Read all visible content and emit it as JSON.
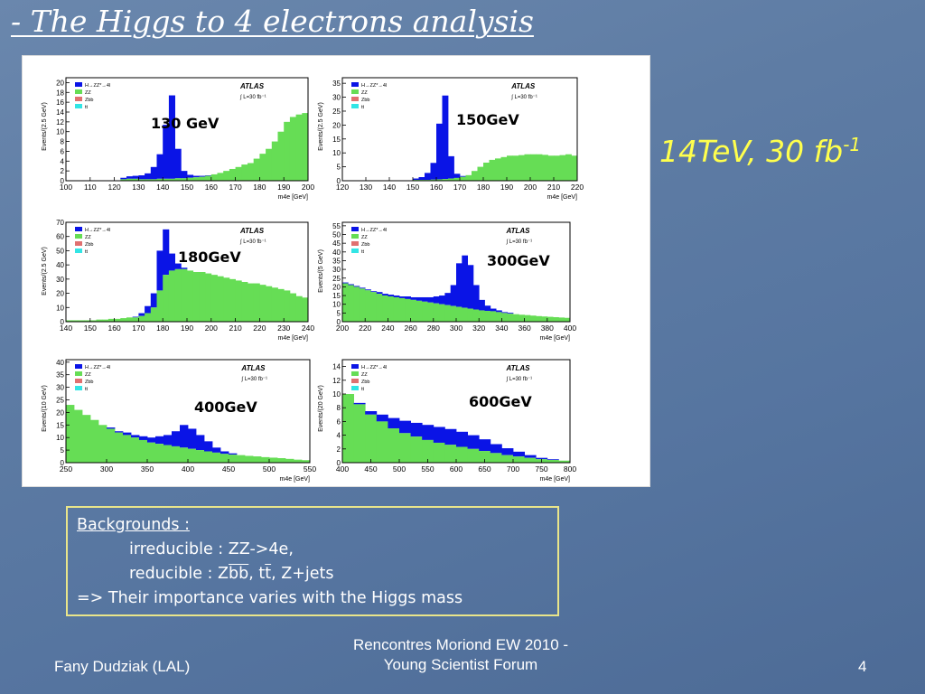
{
  "slide": {
    "title": "- The Higgs to 4 electrons analysis",
    "energy_label": "14TeV, 30 fb",
    "energy_label_sup": "-1",
    "backgrounds": {
      "heading": "Backgrounds :",
      "irreducible": "irreducible :  ZZ->4e,",
      "reducible_prefix": "reducible :  Z",
      "reducible_bb": "bb",
      "reducible_mid": ", t",
      "reducible_tbar": "t",
      "reducible_suffix": ", Z+jets",
      "conclusion": "=> Their importance varies with the Higgs mass"
    },
    "footer": {
      "author": "Fany Dudziak (LAL)",
      "conference_line1": "Rencontres Moriond EW 2010 -",
      "conference_line2": "Young Scientist Forum",
      "page_number": "4"
    }
  },
  "colors": {
    "signal": "#0a14e6",
    "zz": "#66dd55",
    "zbb": "#e07070",
    "tt": "#33e5e5",
    "mass_label": "#000000",
    "energy": "#ffff4d"
  },
  "chart_data": [
    {
      "type": "bar",
      "mass_label": "130 GeV",
      "ylabel": "Events/(2.5 GeV)",
      "xlabel": "m4e [GeV]",
      "xlim": [
        100,
        200
      ],
      "ylim": [
        0,
        21
      ],
      "xticks": [
        100,
        110,
        120,
        130,
        140,
        150,
        160,
        170,
        180,
        190,
        200
      ],
      "yticks": [
        0,
        2,
        4,
        6,
        8,
        10,
        12,
        14,
        16,
        18,
        20
      ],
      "legend": [
        "H→ZZ*→4l",
        "ZZ",
        "Zbb",
        "tt"
      ],
      "atlas_label": "ATLAS",
      "lumi_label": "∫ L=30 fb⁻¹",
      "bin_width": 2.5,
      "series": [
        {
          "name": "ZZ",
          "values": [
            0,
            0,
            0,
            0,
            0,
            0,
            0,
            0,
            0,
            0.3,
            0.4,
            0.4,
            0.3,
            0.3,
            0.3,
            0.4,
            0.4,
            0.4,
            0.5,
            0.5,
            0.6,
            0.7,
            0.8,
            1.0,
            1.3,
            1.6,
            2,
            2.4,
            2.8,
            3.3,
            3.6,
            4.5,
            5.5,
            6.5,
            8,
            10,
            12,
            13,
            13.5,
            13.8
          ]
        },
        {
          "name": "Signal",
          "values": [
            0,
            0,
            0,
            0,
            0,
            0,
            0,
            0,
            0,
            0.3,
            0.5,
            0.6,
            0.8,
            1.2,
            2.5,
            5,
            11,
            17,
            6,
            1.5,
            0.6,
            0.3,
            0.2,
            0.1,
            0,
            0,
            0,
            0,
            0,
            0,
            0,
            0,
            0,
            0,
            0,
            0,
            0,
            0,
            0,
            0
          ]
        }
      ]
    },
    {
      "type": "bar",
      "mass_label": "150GeV",
      "ylabel": "Events/(2.5 GeV)",
      "xlabel": "m4e [GeV]",
      "xlim": [
        120,
        220
      ],
      "ylim": [
        0,
        37
      ],
      "xticks": [
        120,
        130,
        140,
        150,
        160,
        170,
        180,
        190,
        200,
        210,
        220
      ],
      "yticks": [
        0,
        5,
        10,
        15,
        20,
        25,
        30,
        35
      ],
      "legend": [
        "H→ZZ*→4l",
        "ZZ",
        "Zbb",
        "tt"
      ],
      "atlas_label": "ATLAS",
      "lumi_label": "∫ L=30 fb⁻¹",
      "bin_width": 2.5,
      "series": [
        {
          "name": "ZZ",
          "values": [
            0,
            0,
            0,
            0,
            0,
            0,
            0,
            0,
            0,
            0,
            0,
            0,
            0.3,
            0.3,
            0.3,
            0.4,
            0.5,
            0.6,
            0.8,
            1.0,
            1.4,
            2,
            3.5,
            5,
            6.5,
            7.5,
            8,
            8.5,
            9,
            9,
            9.2,
            9.5,
            9.5,
            9.5,
            9.3,
            9.0,
            9.0,
            9.2,
            9.5,
            9.0
          ]
        },
        {
          "name": "Signal",
          "values": [
            0,
            0,
            0,
            0,
            0,
            0,
            0,
            0,
            0,
            0,
            0,
            0,
            0.5,
            1,
            2.5,
            6,
            20,
            30,
            8,
            1.5,
            0.3,
            0,
            0,
            0,
            0,
            0,
            0,
            0,
            0,
            0,
            0,
            0,
            0,
            0,
            0,
            0,
            0,
            0,
            0,
            0
          ]
        }
      ]
    },
    {
      "type": "bar",
      "mass_label": "180GeV",
      "ylabel": "Events/(2.5 GeV)",
      "xlabel": "m4e [GeV]",
      "xlim": [
        140,
        240
      ],
      "ylim": [
        0,
        70
      ],
      "xticks": [
        140,
        150,
        160,
        170,
        180,
        190,
        200,
        210,
        220,
        230,
        240
      ],
      "yticks": [
        0,
        10,
        20,
        30,
        40,
        50,
        60,
        70
      ],
      "legend": [
        "H→ZZ*→4l",
        "ZZ",
        "Zbb",
        "tt"
      ],
      "atlas_label": "ATLAS",
      "lumi_label": "∫ L=30 fb⁻¹",
      "bin_width": 2.5,
      "series": [
        {
          "name": "ZZ",
          "values": [
            1,
            1,
            1,
            1,
            1,
            1.5,
            1.5,
            2,
            2,
            2.5,
            3,
            3,
            4,
            6,
            10,
            22,
            33,
            36,
            37,
            37,
            36,
            35,
            35,
            34,
            33,
            32,
            31,
            30,
            29,
            28,
            27,
            27,
            26,
            25,
            24,
            23,
            22,
            20,
            18,
            17
          ]
        },
        {
          "name": "Signal",
          "values": [
            0,
            0,
            0,
            0,
            0,
            0,
            0,
            0,
            0,
            0,
            0,
            0.5,
            2,
            5,
            10,
            28,
            32,
            12,
            4,
            1,
            0,
            0,
            0,
            0,
            0,
            0,
            0,
            0,
            0,
            0,
            0,
            0,
            0,
            0,
            0,
            0,
            0,
            0,
            0,
            0
          ]
        }
      ]
    },
    {
      "type": "bar",
      "mass_label": "300GeV",
      "ylabel": "Events/(5 GeV)",
      "xlabel": "m4e [GeV]",
      "xlim": [
        200,
        400
      ],
      "ylim": [
        0,
        57
      ],
      "xticks": [
        200,
        220,
        240,
        260,
        280,
        300,
        320,
        340,
        360,
        380,
        400
      ],
      "yticks": [
        0,
        5,
        10,
        15,
        20,
        25,
        30,
        35,
        40,
        45,
        50,
        55
      ],
      "legend": [
        "H→ZZ*→4l",
        "ZZ",
        "Zbb",
        "tt"
      ],
      "atlas_label": "ATLAS",
      "lumi_label": "∫ L=30 fb⁻¹",
      "bin_width": 5,
      "series": [
        {
          "name": "ZZ",
          "values": [
            22,
            21,
            20,
            19,
            18,
            17,
            16,
            15,
            14.5,
            14,
            13.5,
            13,
            12.5,
            12,
            11.5,
            11,
            10.5,
            10,
            9.5,
            9,
            8.5,
            8,
            7.5,
            7,
            6.5,
            6.2,
            6,
            5.5,
            5,
            4.6,
            4.3,
            4,
            3.8,
            3.5,
            3.2,
            3,
            2.8,
            2.6,
            2.4,
            2.2
          ]
        },
        {
          "name": "Signal",
          "values": [
            0.5,
            0.5,
            0.5,
            0.5,
            0.5,
            0.5,
            1,
            1,
            1,
            1,
            1,
            1.5,
            1.5,
            2,
            2.5,
            3,
            4,
            5,
            7,
            12,
            25,
            30,
            25,
            14,
            6,
            3,
            1.5,
            1,
            0.5,
            0.5,
            0,
            0,
            0,
            0,
            0,
            0,
            0,
            0,
            0,
            0
          ]
        }
      ]
    },
    {
      "type": "bar",
      "mass_label": "400GeV",
      "ylabel": "Events/(10 GeV)",
      "xlabel": "m4e [GeV]",
      "xlim": [
        250,
        550
      ],
      "ylim": [
        0,
        41
      ],
      "xticks": [
        250,
        300,
        350,
        400,
        450,
        500,
        550
      ],
      "yticks": [
        0,
        5,
        10,
        15,
        20,
        25,
        30,
        35,
        40
      ],
      "legend": [
        "H→ZZ*→4l",
        "ZZ",
        "Zbb",
        "tt"
      ],
      "atlas_label": "ATLAS",
      "lumi_label": "∫ L=30 fb⁻¹",
      "bin_width": 10,
      "series": [
        {
          "name": "ZZ",
          "values": [
            23,
            21,
            19,
            17,
            15,
            13.5,
            12,
            11,
            10,
            9,
            8,
            7.5,
            7,
            6.5,
            6,
            5.5,
            5,
            4.5,
            4,
            3.5,
            3.2,
            3,
            2.7,
            2.5,
            2.2,
            2,
            1.8,
            1.5,
            1.2,
            1.0
          ]
        },
        {
          "name": "Signal",
          "values": [
            0,
            0,
            0,
            0,
            0,
            0.5,
            0.5,
            1,
            1,
            1.5,
            2,
            3,
            4,
            6,
            9,
            8,
            6,
            4,
            2,
            1,
            0.5,
            0,
            0,
            0,
            0,
            0,
            0,
            0,
            0,
            0
          ]
        }
      ]
    },
    {
      "type": "bar",
      "mass_label": "600GeV",
      "ylabel": "Events/(20 GeV)",
      "xlabel": "m4e [GeV]",
      "xlim": [
        400,
        800
      ],
      "ylim": [
        0,
        15
      ],
      "xticks": [
        400,
        450,
        500,
        550,
        600,
        650,
        700,
        750,
        800
      ],
      "yticks": [
        0,
        2,
        4,
        6,
        8,
        10,
        12,
        14
      ],
      "legend": [
        "H→ZZ*→4l",
        "ZZ",
        "Zbb",
        "tt"
      ],
      "atlas_label": "ATLAS",
      "lumi_label": "∫ L=30 fb⁻¹",
      "bin_width": 20,
      "series": [
        {
          "name": "ZZ",
          "values": [
            10,
            8.5,
            7,
            6,
            5,
            4.3,
            3.8,
            3.3,
            2.9,
            2.6,
            2.3,
            2.0,
            1.7,
            1.4,
            1.1,
            0.9,
            0.7,
            0.5,
            0.4,
            0.3
          ]
        },
        {
          "name": "Signal",
          "values": [
            0,
            0.2,
            0.5,
            1,
            1.5,
            1.8,
            2,
            2.2,
            2.3,
            2.3,
            2.2,
            2,
            1.7,
            1.3,
            1,
            0.7,
            0.4,
            0.2,
            0.1,
            0
          ]
        }
      ]
    }
  ]
}
